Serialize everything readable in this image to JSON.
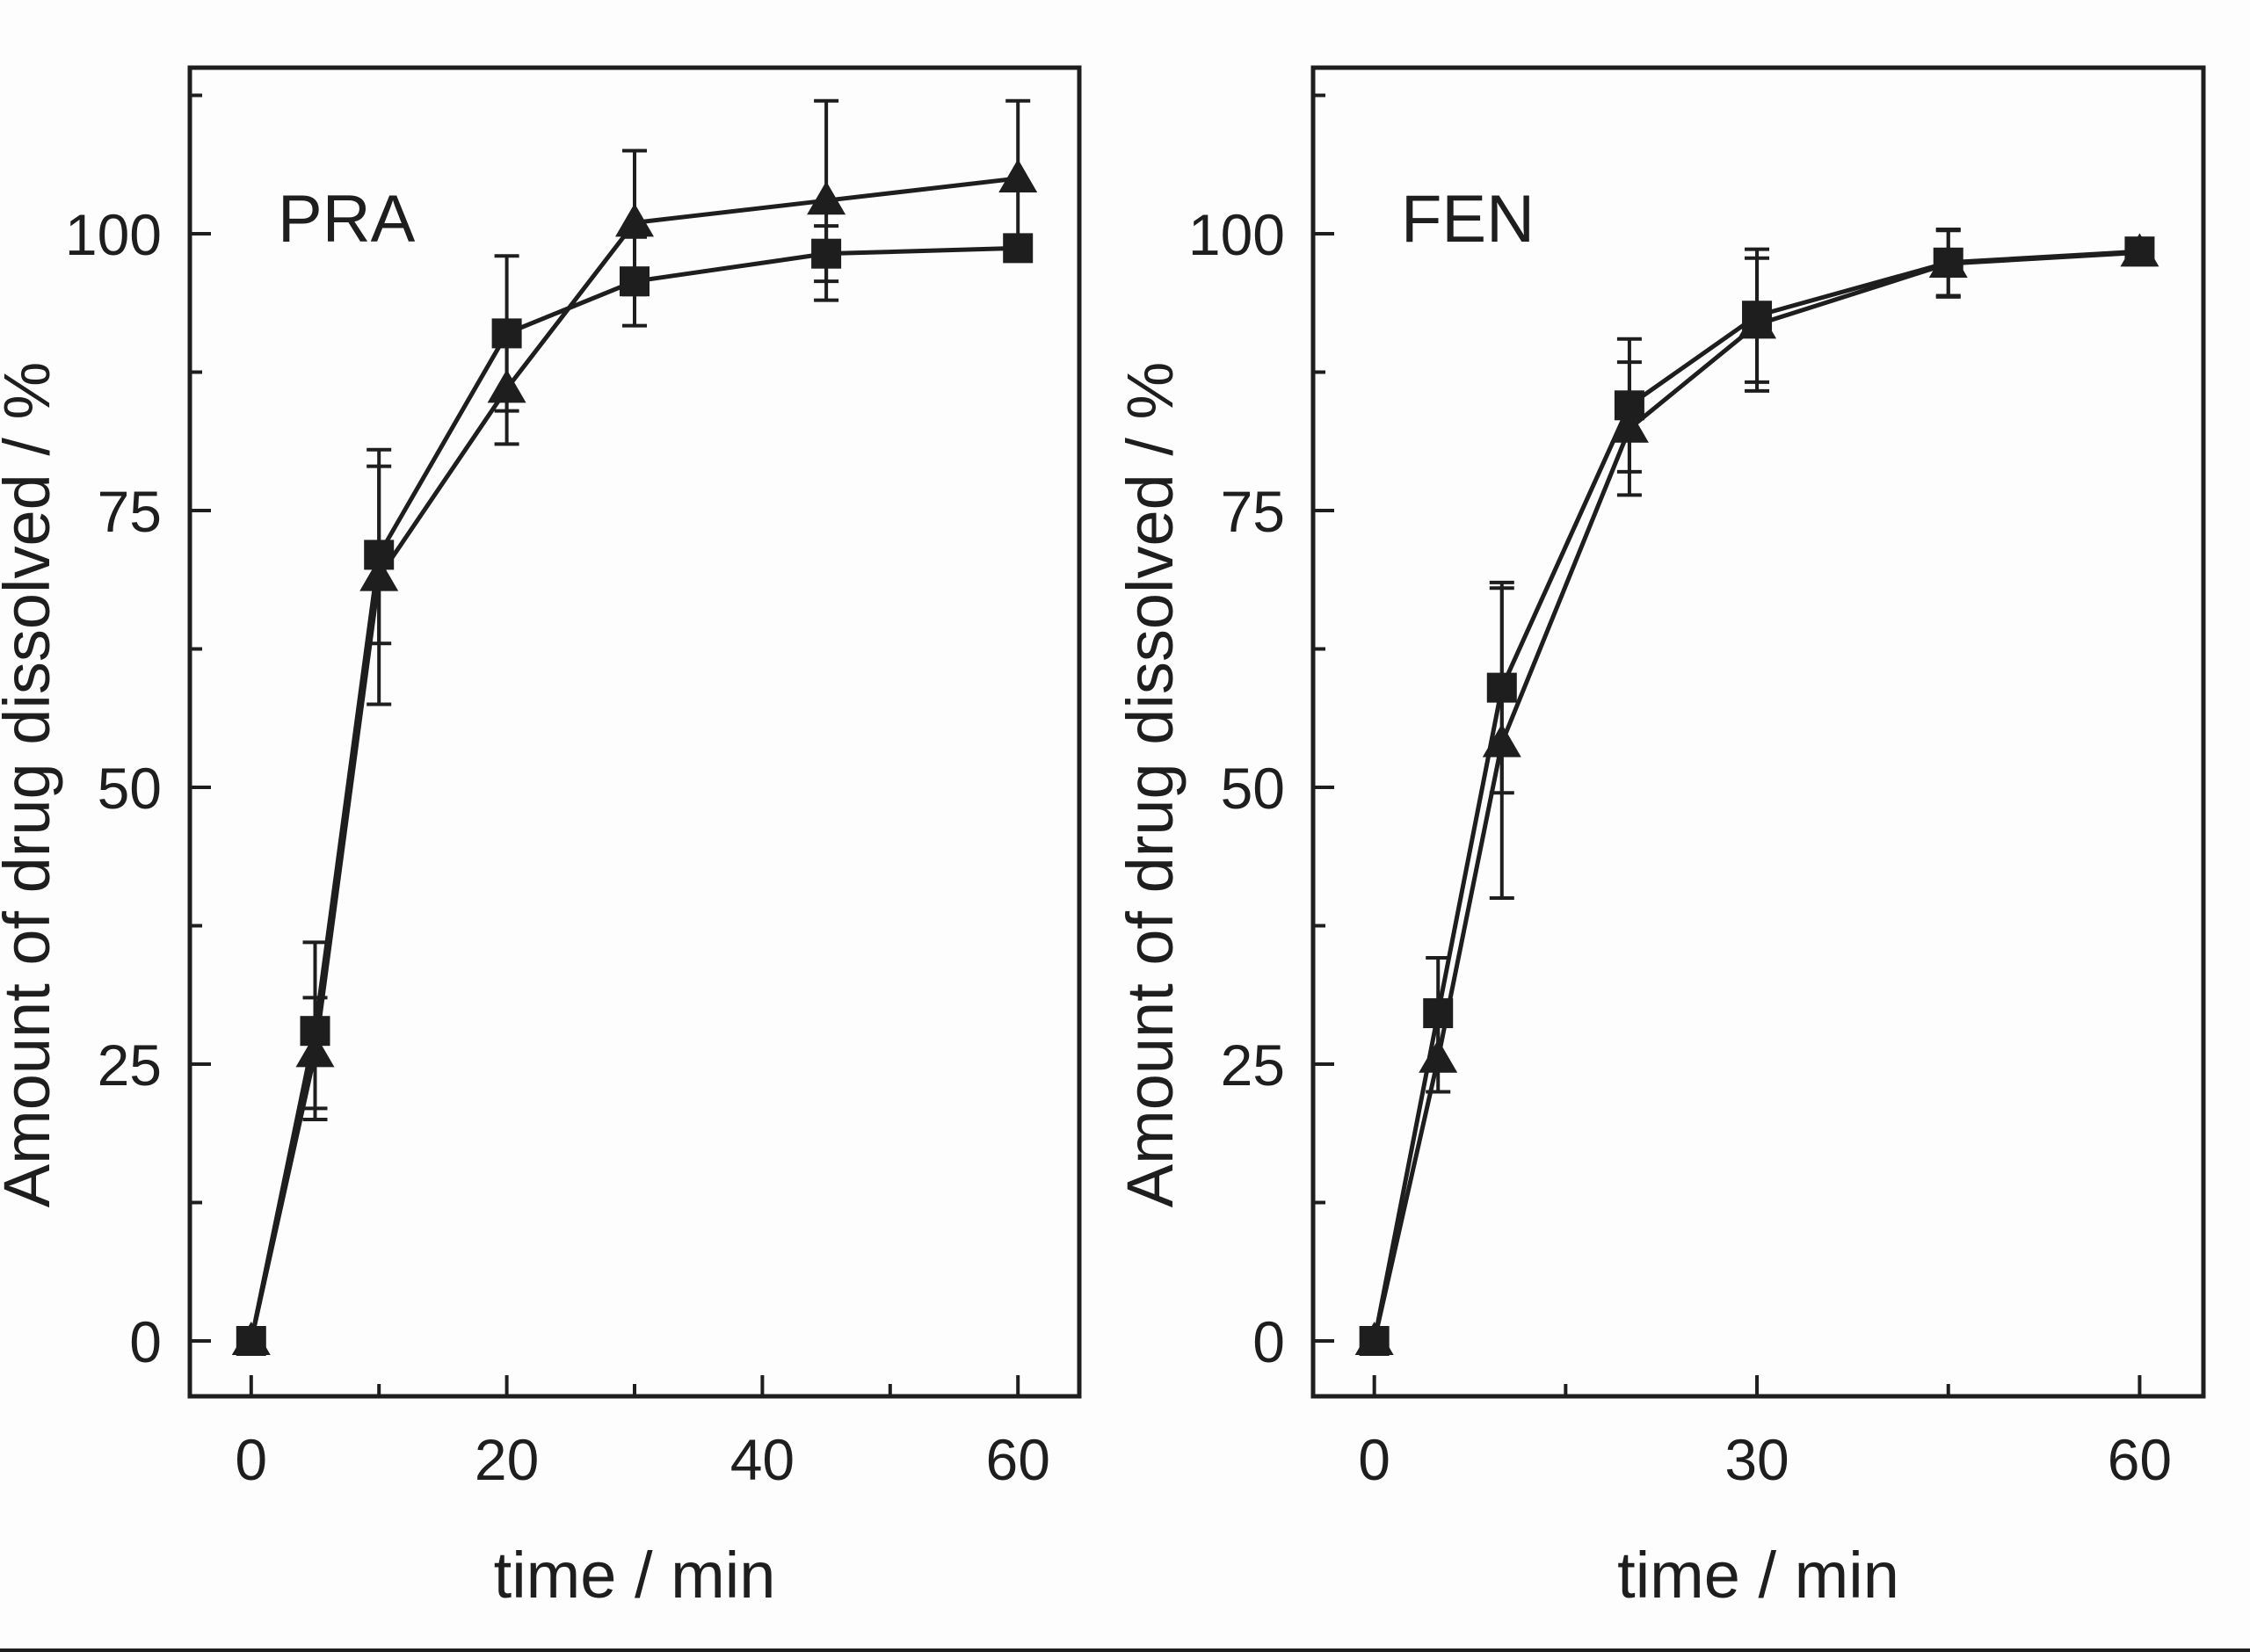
{
  "chart_data": [
    {
      "type": "line",
      "panel_label": "PRA",
      "xlabel": "time / min",
      "ylabel": "Amount of drug dissolved / %",
      "x": [
        0,
        5,
        10,
        20,
        30,
        45,
        60
      ],
      "xlim": [
        -4.8,
        64.8
      ],
      "ylim": [
        -5,
        115
      ],
      "xticks": [
        0,
        20,
        40,
        60
      ],
      "xminor": [
        10,
        30,
        50
      ],
      "yticks": [
        0,
        25,
        50,
        75,
        100
      ],
      "yminor": [
        12.5,
        37.5,
        62.5,
        87.5,
        112.5
      ],
      "grid": false,
      "series": [
        {
          "marker": "square",
          "values": [
            0,
            28,
            71,
            91,
            95.7,
            98.2,
            98.7
          ],
          "errors": [
            0,
            8,
            8,
            7,
            4,
            2.5,
            1
          ]
        },
        {
          "marker": "triangle",
          "values": [
            0,
            26,
            69,
            86,
            101,
            103,
            105
          ],
          "errors": [
            0,
            5,
            11.5,
            5,
            6.5,
            9,
            7
          ]
        }
      ]
    },
    {
      "type": "line",
      "panel_label": "FEN",
      "xlabel": "time / min",
      "ylabel": "Amount of drug dissolved / %",
      "x": [
        0,
        5,
        10,
        20,
        30,
        45,
        60
      ],
      "xlim": [
        -4.8,
        65
      ],
      "ylim": [
        -5,
        115
      ],
      "xticks": [
        0,
        30,
        60
      ],
      "xminor": [
        15,
        45
      ],
      "yticks": [
        0,
        25,
        50,
        75,
        100
      ],
      "yminor": [
        12.5,
        37.5,
        62.5,
        87.5,
        112.5
      ],
      "grid": false,
      "series": [
        {
          "marker": "square",
          "values": [
            0,
            29.6,
            59,
            84.5,
            92.6,
            97.4,
            98.4
          ],
          "errors": [
            0,
            5,
            9.5,
            6,
            6,
            3,
            1
          ]
        },
        {
          "marker": "triangle",
          "values": [
            0,
            25.5,
            54,
            82.4,
            91.8,
            97.3,
            98.3
          ],
          "errors": [
            0,
            3,
            14,
            6,
            6,
            3,
            1
          ]
        }
      ]
    }
  ],
  "colors": {
    "ink": "#1e1e1e",
    "background": "#fdfdfd"
  }
}
